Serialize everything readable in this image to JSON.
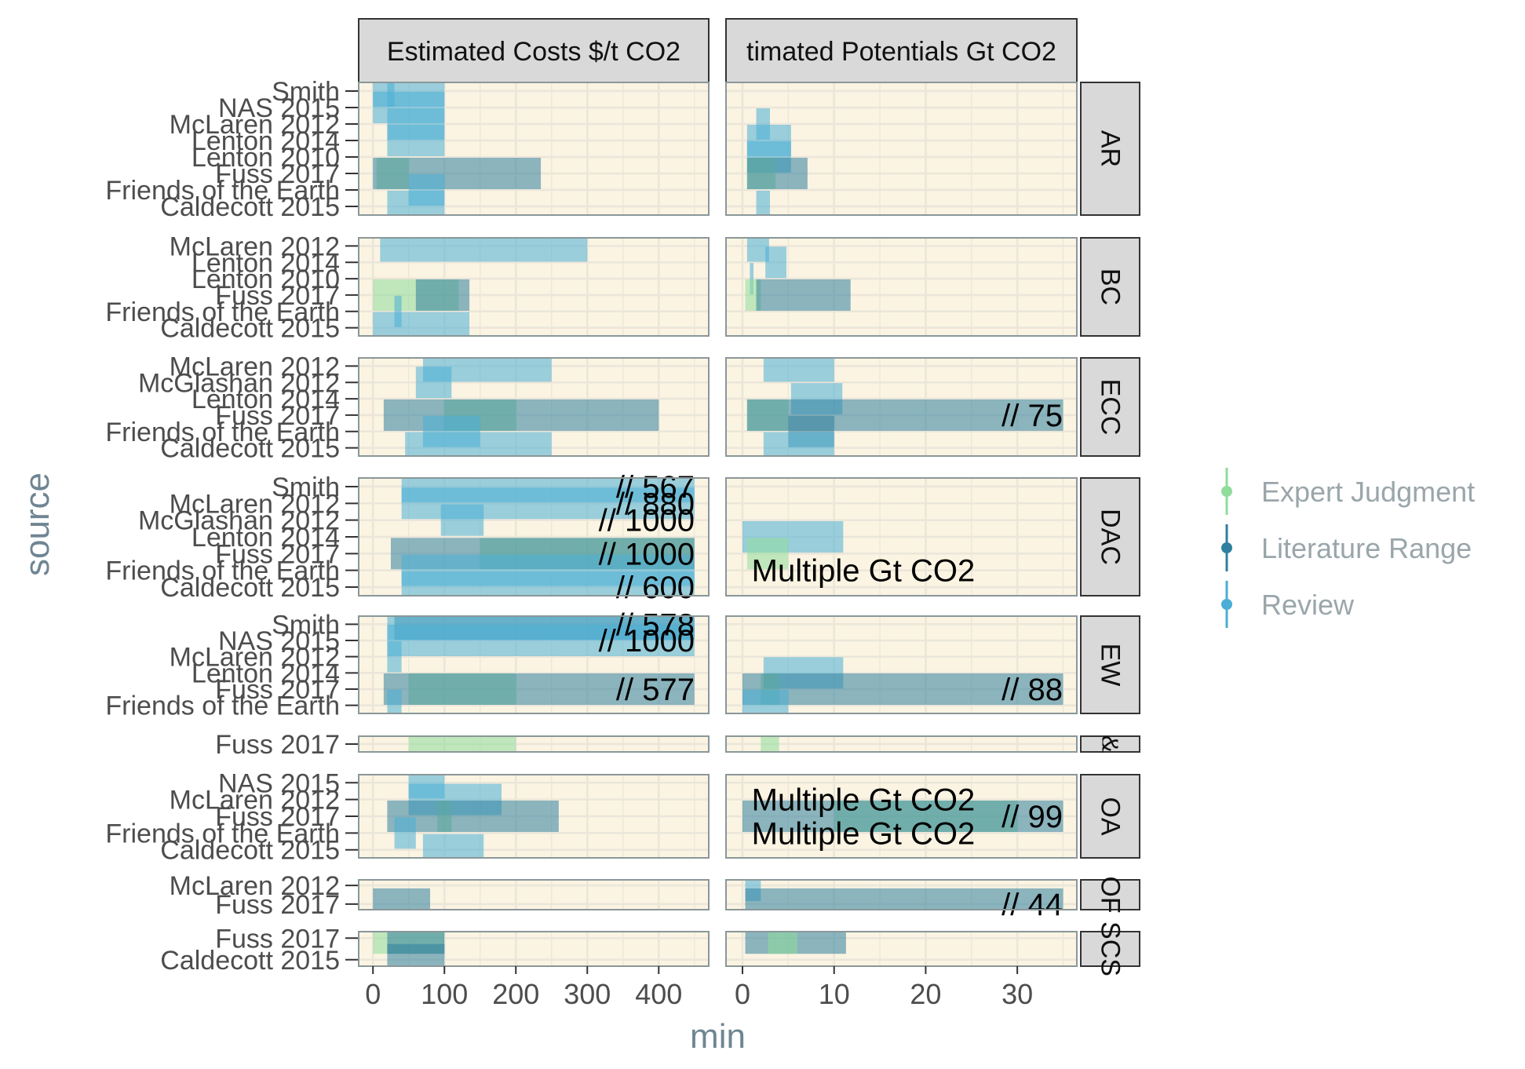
{
  "chart_data": {
    "type": "bar",
    "subtype": "faceted horizontal range bars",
    "x_axis_title": "min",
    "y_axis_title": "source",
    "column_facets": [
      {
        "label": "Estimated Costs $/t CO2",
        "xlim": [
          -20,
          470
        ],
        "ticks": [
          0,
          100,
          200,
          300,
          400
        ]
      },
      {
        "label": "timated Potentials Gt CO2",
        "xlim": [
          -1.8,
          36.5
        ],
        "ticks": [
          0,
          10,
          20,
          30
        ]
      }
    ],
    "legend": {
      "placement": "right",
      "entries": [
        {
          "key": "expert",
          "label": "Expert Judgment",
          "color": "#8fdc9b"
        },
        {
          "key": "literature",
          "label": "Literature Range",
          "color": "#2f7f9f"
        },
        {
          "key": "review",
          "label": "Review",
          "color": "#4aaed6"
        }
      ]
    },
    "panel_background": "#fbf4e2",
    "strip_fill": "#d9d9d9",
    "grid": true,
    "row_facets": [
      {
        "label": "AR",
        "sources": [
          "Caldecott 2015",
          "Friends of the Earth",
          "Fuss 2017",
          "Lenton 2010",
          "Lenton 2014",
          "McLaren 2012",
          "NAS 2015",
          "Smith"
        ],
        "cost_bars": [
          {
            "source": "Smith",
            "type": "review",
            "min": 0,
            "max": 100
          },
          {
            "source": "Smith",
            "type": "review",
            "min": 20,
            "max": 30
          },
          {
            "source": "NAS 2015",
            "type": "review",
            "min": 0,
            "max": 100
          },
          {
            "source": "McLaren 2012",
            "type": "review",
            "min": 20,
            "max": 100
          },
          {
            "source": "Lenton 2014",
            "type": "review",
            "min": 20,
            "max": 100
          },
          {
            "source": "Fuss 2017",
            "type": "expert",
            "min": 5,
            "max": 50
          },
          {
            "source": "Fuss 2017",
            "type": "literature",
            "min": 0,
            "max": 235
          },
          {
            "source": "Friends of the Earth",
            "type": "review",
            "min": 50,
            "max": 100
          },
          {
            "source": "Caldecott 2015",
            "type": "review",
            "min": 20,
            "max": 100
          }
        ],
        "potential_bars": [
          {
            "source": "McLaren 2012",
            "type": "review",
            "min": 1.5,
            "max": 3
          },
          {
            "source": "Lenton 2014",
            "type": "review",
            "min": 0.5,
            "max": 5.3
          },
          {
            "source": "Lenton 2010",
            "type": "review",
            "min": 0.5,
            "max": 5.3
          },
          {
            "source": "Fuss 2017",
            "type": "expert",
            "min": 0.5,
            "max": 3.6
          },
          {
            "source": "Fuss 2017",
            "type": "literature",
            "min": 0.5,
            "max": 7.1
          },
          {
            "source": "Caldecott 2015",
            "type": "review",
            "min": 1.5,
            "max": 3
          }
        ],
        "cost_annotations": [],
        "potential_annotations": []
      },
      {
        "label": "BC",
        "sources": [
          "Caldecott 2015",
          "Friends of the Earth",
          "Fuss 2017",
          "Lenton 2010",
          "Lenton 2014",
          "McLaren 2012"
        ],
        "cost_bars": [
          {
            "source": "McLaren 2012",
            "type": "review",
            "min": 10,
            "max": 300
          },
          {
            "source": "Fuss 2017",
            "type": "expert",
            "min": 0,
            "max": 120
          },
          {
            "source": "Fuss 2017",
            "type": "literature",
            "min": 60,
            "max": 135
          },
          {
            "source": "Friends of the Earth",
            "type": "review",
            "min": 30,
            "max": 40
          },
          {
            "source": "Caldecott 2015",
            "type": "review",
            "min": 0,
            "max": 135
          }
        ],
        "potential_bars": [
          {
            "source": "McLaren 2012",
            "type": "review",
            "min": 0.5,
            "max": 2.9
          },
          {
            "source": "Lenton 2014",
            "type": "review",
            "min": 2.5,
            "max": 4.8
          },
          {
            "source": "Lenton 2010",
            "type": "review",
            "min": 0.8,
            "max": 1.2
          },
          {
            "source": "Fuss 2017",
            "type": "expert",
            "min": 0.3,
            "max": 2
          },
          {
            "source": "Fuss 2017",
            "type": "literature",
            "min": 1.5,
            "max": 11.8
          }
        ],
        "cost_annotations": [],
        "potential_annotations": []
      },
      {
        "label": "BECCS",
        "sources": [
          "Caldecott 2015",
          "Friends of the Earth",
          "Fuss 2017",
          "Lenton 2014",
          "McGlashan 2012",
          "McLaren 2012"
        ],
        "cost_bars": [
          {
            "source": "McLaren 2012",
            "type": "review",
            "min": 70,
            "max": 250
          },
          {
            "source": "McGlashan 2012",
            "type": "review",
            "min": 60,
            "max": 110
          },
          {
            "source": "Fuss 2017",
            "type": "expert",
            "min": 100,
            "max": 200
          },
          {
            "source": "Fuss 2017",
            "type": "literature",
            "min": 15,
            "max": 400
          },
          {
            "source": "Friends of the Earth",
            "type": "review",
            "min": 70,
            "max": 150
          },
          {
            "source": "Caldecott 2015",
            "type": "review",
            "min": 45,
            "max": 250
          }
        ],
        "potential_bars": [
          {
            "source": "McLaren 2012",
            "type": "review",
            "min": 2.3,
            "max": 10
          },
          {
            "source": "Lenton 2014",
            "type": "review",
            "min": 5.3,
            "max": 10.9
          },
          {
            "source": "Fuss 2017",
            "type": "expert",
            "min": 0.5,
            "max": 5
          },
          {
            "source": "Fuss 2017",
            "type": "literature",
            "min": 0.5,
            "max": 35
          },
          {
            "source": "Friends of the Earth",
            "type": "literature",
            "min": 5,
            "max": 10
          },
          {
            "source": "Caldecott 2015",
            "type": "review",
            "min": 2.3,
            "max": 10
          }
        ],
        "cost_annotations": [],
        "potential_annotations": [
          {
            "source": "Fuss 2017",
            "text": "// 75"
          }
        ]
      },
      {
        "label": "DAC",
        "sources": [
          "Caldecott 2015",
          "Friends of the Earth",
          "Fuss 2017",
          "Lenton 2014",
          "McGlashan 2012",
          "McLaren 2012",
          "Smith"
        ],
        "cost_bars": [
          {
            "source": "Smith",
            "type": "review",
            "min": 40,
            "max": 450
          },
          {
            "source": "McLaren 2012",
            "type": "review",
            "min": 40,
            "max": 450
          },
          {
            "source": "McGlashan 2012",
            "type": "review",
            "min": 95,
            "max": 155
          },
          {
            "source": "Fuss 2017",
            "type": "expert",
            "min": 150,
            "max": 450
          },
          {
            "source": "Fuss 2017",
            "type": "literature",
            "min": 25,
            "max": 450
          },
          {
            "source": "Friends of the Earth",
            "type": "review",
            "min": 40,
            "max": 450
          },
          {
            "source": "Caldecott 2015",
            "type": "review",
            "min": 40,
            "max": 450
          }
        ],
        "potential_bars": [
          {
            "source": "Lenton 2014",
            "type": "review",
            "min": 0,
            "max": 11
          },
          {
            "source": "Fuss 2017",
            "type": "expert",
            "min": 0.5,
            "max": 5
          }
        ],
        "cost_annotations": [
          {
            "source": "Smith",
            "text": "// 567"
          },
          {
            "source": "McLaren 2012",
            "text": "// 880"
          },
          {
            "source": "McGlashan 2012",
            "text": "// 1000"
          },
          {
            "source": "Fuss 2017",
            "text": "// 1000"
          },
          {
            "source": "Caldecott 2015",
            "text": "// 600"
          }
        ],
        "potential_annotations": [
          {
            "source": "Friends of the Earth",
            "text": "Multiple Gt CO2"
          }
        ]
      },
      {
        "label": "EW",
        "sources": [
          "Friends of the Earth",
          "Fuss 2017",
          "Lenton 2014",
          "McLaren 2012",
          "NAS 2015",
          "Smith"
        ],
        "cost_bars": [
          {
            "source": "Smith",
            "type": "literature",
            "min": 30,
            "max": 450
          },
          {
            "source": "Smith",
            "type": "review",
            "min": 20,
            "max": 450
          },
          {
            "source": "NAS 2015",
            "type": "review",
            "min": 20,
            "max": 450
          },
          {
            "source": "McLaren 2012",
            "type": "review",
            "min": 20,
            "max": 40
          },
          {
            "source": "Fuss 2017",
            "type": "expert",
            "min": 50,
            "max": 200
          },
          {
            "source": "Fuss 2017",
            "type": "literature",
            "min": 15,
            "max": 450
          },
          {
            "source": "Friends of the Earth",
            "type": "review",
            "min": 20,
            "max": 40
          }
        ],
        "potential_bars": [
          {
            "source": "Lenton 2014",
            "type": "review",
            "min": 2.3,
            "max": 11
          },
          {
            "source": "Fuss 2017",
            "type": "expert",
            "min": 2,
            "max": 4
          },
          {
            "source": "Fuss 2017",
            "type": "literature",
            "min": 0,
            "max": 35
          },
          {
            "source": "Friends of the Earth",
            "type": "review",
            "min": 0,
            "max": 5
          }
        ],
        "cost_annotations": [
          {
            "source": "Smith",
            "text": "// 578"
          },
          {
            "source": "NAS 2015",
            "text": "// 1000"
          },
          {
            "source": "Fuss 2017",
            "text": "// 577"
          }
        ],
        "potential_annotations": [
          {
            "source": "Fuss 2017",
            "text": "// 88"
          }
        ]
      },
      {
        "label": "&",
        "sources": [
          "Fuss 2017"
        ],
        "cost_bars": [
          {
            "source": "Fuss 2017",
            "type": "expert",
            "min": 50,
            "max": 200
          }
        ],
        "potential_bars": [
          {
            "source": "Fuss 2017",
            "type": "expert",
            "min": 2,
            "max": 4
          }
        ],
        "cost_annotations": [],
        "potential_annotations": []
      },
      {
        "label": "OA",
        "sources": [
          "Caldecott 2015",
          "Friends of the Earth",
          "Fuss 2017",
          "McLaren 2012",
          "NAS 2015"
        ],
        "cost_bars": [
          {
            "source": "NAS 2015",
            "type": "review",
            "min": 50,
            "max": 100
          },
          {
            "source": "McLaren 2012",
            "type": "review",
            "min": 50,
            "max": 180
          },
          {
            "source": "Fuss 2017",
            "type": "expert",
            "min": 90,
            "max": 110
          },
          {
            "source": "Fuss 2017",
            "type": "literature",
            "min": 20,
            "max": 260
          },
          {
            "source": "Friends of the Earth",
            "type": "review",
            "min": 30,
            "max": 60
          },
          {
            "source": "Caldecott 2015",
            "type": "review",
            "min": 70,
            "max": 155
          }
        ],
        "potential_bars": [
          {
            "source": "Fuss 2017",
            "type": "expert",
            "min": 10,
            "max": 30
          },
          {
            "source": "Fuss 2017",
            "type": "literature",
            "min": 0,
            "max": 35
          }
        ],
        "cost_annotations": [],
        "potential_annotations": [
          {
            "source": "McLaren 2012",
            "text": "Multiple Gt CO2"
          },
          {
            "source": "Fuss 2017",
            "text": "// 99"
          },
          {
            "source": "Friends of the Earth",
            "text": "Multiple Gt CO2"
          }
        ]
      },
      {
        "label": "OF",
        "sources": [
          "Fuss 2017",
          "McLaren 2012"
        ],
        "cost_bars": [
          {
            "source": "Fuss 2017",
            "type": "literature",
            "min": 0,
            "max": 80
          }
        ],
        "potential_bars": [
          {
            "source": "McLaren 2012",
            "type": "review",
            "min": 0.3,
            "max": 2
          },
          {
            "source": "Fuss 2017",
            "type": "literature",
            "min": 0.3,
            "max": 35
          }
        ],
        "cost_annotations": [],
        "potential_annotations": [
          {
            "source": "Fuss 2017",
            "text": "// 44"
          }
        ]
      },
      {
        "label": "SCS",
        "sources": [
          "Caldecott 2015",
          "Fuss 2017"
        ],
        "cost_bars": [
          {
            "source": "Fuss 2017",
            "type": "expert",
            "min": 0,
            "max": 100
          },
          {
            "source": "Caldecott 2015",
            "type": "literature",
            "min": 20,
            "max": 100
          },
          {
            "source": "Fuss 2017",
            "type": "literature",
            "min": 20,
            "max": 100
          }
        ],
        "potential_bars": [
          {
            "source": "Fuss 2017",
            "type": "literature",
            "min": 0.3,
            "max": 11.3
          },
          {
            "source": "Fuss 2017",
            "type": "expert",
            "min": 2.8,
            "max": 6
          }
        ],
        "cost_annotations": [],
        "potential_annotations": []
      }
    ]
  }
}
